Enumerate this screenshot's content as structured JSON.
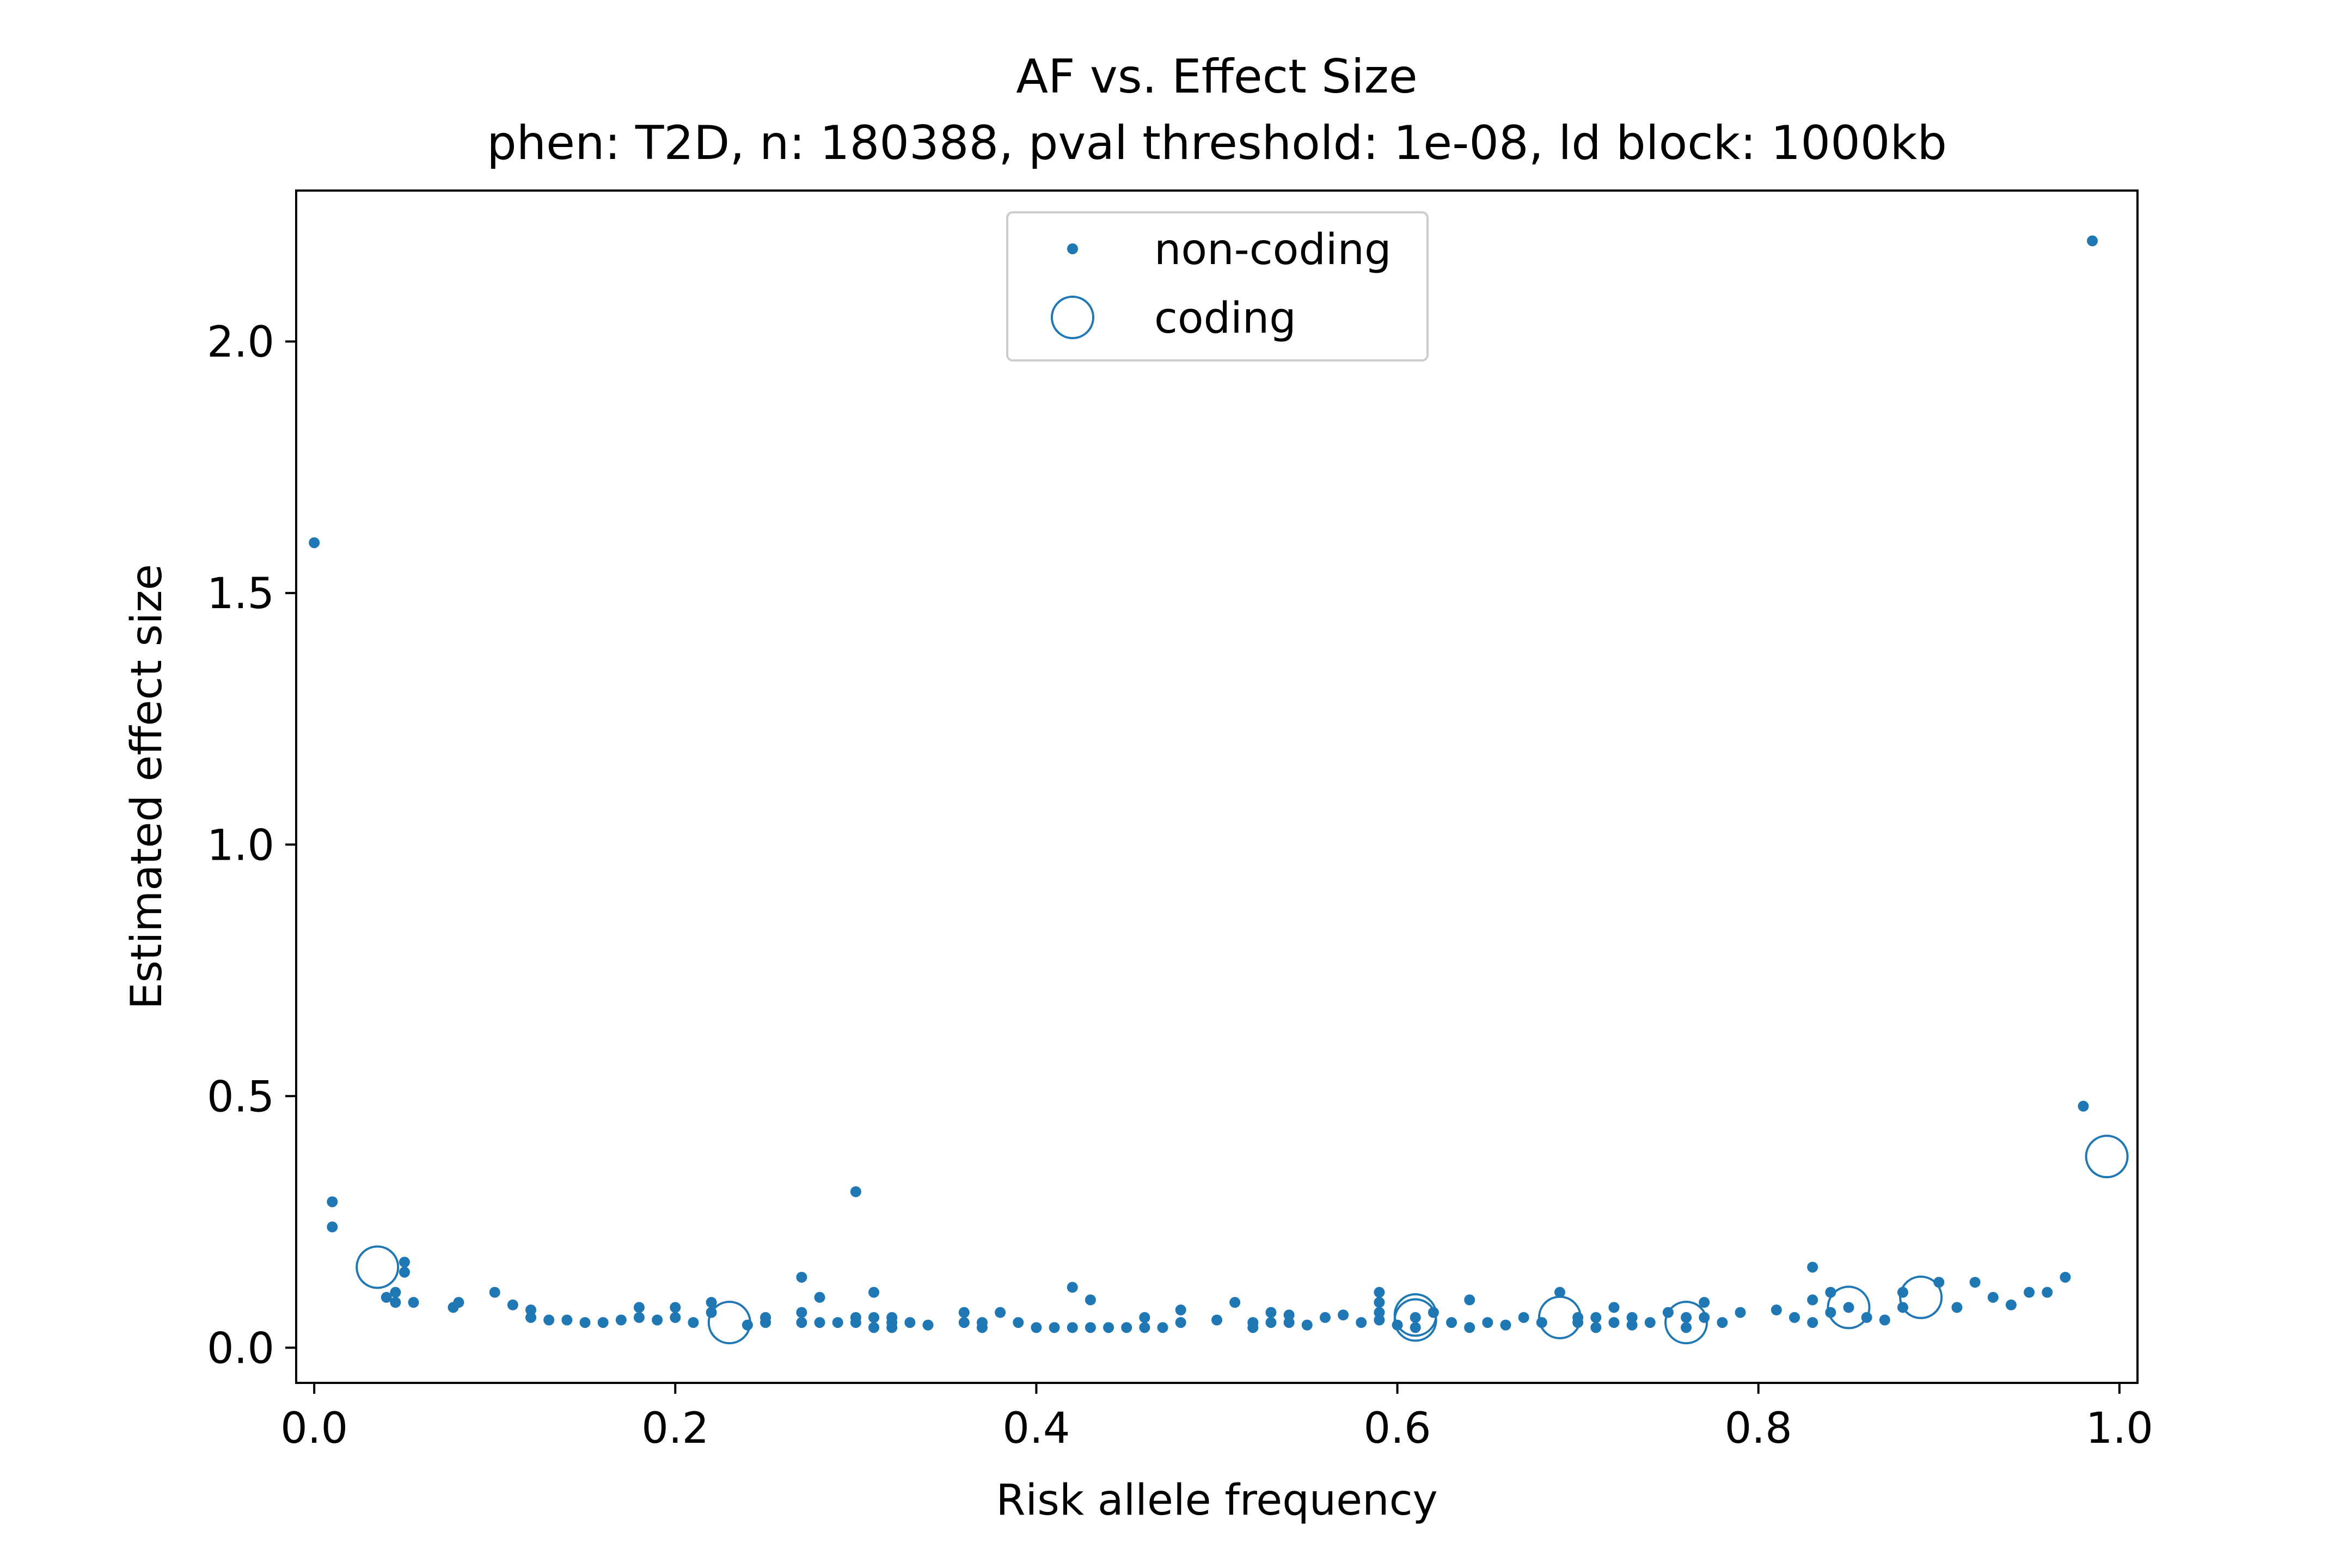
{
  "chart_data": {
    "type": "scatter",
    "title": "AF vs. Effect Size",
    "subtitle": "phen: T2D, n: 180388, pval threshold: 1e-08, ld block: 1000kb",
    "xlabel": "Risk allele frequency",
    "ylabel": "Estimated effect size",
    "xlim": [
      -0.01,
      1.01
    ],
    "ylim": [
      -0.07,
      2.3
    ],
    "xticks": [
      "0.0",
      "0.2",
      "0.4",
      "0.6",
      "0.8",
      "1.0"
    ],
    "yticks": [
      "0.0",
      "0.5",
      "1.0",
      "1.5",
      "2.0"
    ],
    "grid": false,
    "legend": {
      "position": "top-center",
      "entries": [
        "non-coding",
        "coding"
      ]
    },
    "color": "#1f77b4",
    "series": [
      {
        "name": "non-coding",
        "marker": "dot",
        "points": [
          [
            0.0,
            1.6
          ],
          [
            0.01,
            0.29
          ],
          [
            0.01,
            0.24
          ],
          [
            0.04,
            0.1
          ],
          [
            0.045,
            0.09
          ],
          [
            0.05,
            0.17
          ],
          [
            0.05,
            0.15
          ],
          [
            0.045,
            0.11
          ],
          [
            0.055,
            0.09
          ],
          [
            0.077,
            0.08
          ],
          [
            0.08,
            0.09
          ],
          [
            0.1,
            0.11
          ],
          [
            0.11,
            0.085
          ],
          [
            0.12,
            0.075
          ],
          [
            0.12,
            0.06
          ],
          [
            0.13,
            0.055
          ],
          [
            0.14,
            0.055
          ],
          [
            0.15,
            0.05
          ],
          [
            0.16,
            0.05
          ],
          [
            0.17,
            0.055
          ],
          [
            0.18,
            0.06
          ],
          [
            0.18,
            0.08
          ],
          [
            0.19,
            0.055
          ],
          [
            0.2,
            0.06
          ],
          [
            0.2,
            0.08
          ],
          [
            0.21,
            0.05
          ],
          [
            0.22,
            0.09
          ],
          [
            0.22,
            0.07
          ],
          [
            0.24,
            0.045
          ],
          [
            0.25,
            0.06
          ],
          [
            0.25,
            0.05
          ],
          [
            0.27,
            0.14
          ],
          [
            0.27,
            0.07
          ],
          [
            0.27,
            0.05
          ],
          [
            0.28,
            0.1
          ],
          [
            0.28,
            0.05
          ],
          [
            0.29,
            0.05
          ],
          [
            0.3,
            0.31
          ],
          [
            0.3,
            0.06
          ],
          [
            0.3,
            0.05
          ],
          [
            0.31,
            0.11
          ],
          [
            0.31,
            0.06
          ],
          [
            0.31,
            0.04
          ],
          [
            0.32,
            0.06
          ],
          [
            0.32,
            0.05
          ],
          [
            0.32,
            0.04
          ],
          [
            0.33,
            0.05
          ],
          [
            0.34,
            0.045
          ],
          [
            0.36,
            0.07
          ],
          [
            0.36,
            0.05
          ],
          [
            0.37,
            0.05
          ],
          [
            0.37,
            0.04
          ],
          [
            0.38,
            0.07
          ],
          [
            0.39,
            0.05
          ],
          [
            0.4,
            0.04
          ],
          [
            0.41,
            0.04
          ],
          [
            0.42,
            0.12
          ],
          [
            0.42,
            0.04
          ],
          [
            0.43,
            0.095
          ],
          [
            0.43,
            0.04
          ],
          [
            0.44,
            0.04
          ],
          [
            0.45,
            0.04
          ],
          [
            0.46,
            0.06
          ],
          [
            0.46,
            0.04
          ],
          [
            0.47,
            0.04
          ],
          [
            0.48,
            0.075
          ],
          [
            0.48,
            0.05
          ],
          [
            0.5,
            0.055
          ],
          [
            0.51,
            0.09
          ],
          [
            0.52,
            0.05
          ],
          [
            0.52,
            0.04
          ],
          [
            0.53,
            0.07
          ],
          [
            0.53,
            0.05
          ],
          [
            0.54,
            0.065
          ],
          [
            0.54,
            0.05
          ],
          [
            0.55,
            0.045
          ],
          [
            0.56,
            0.06
          ],
          [
            0.57,
            0.065
          ],
          [
            0.58,
            0.05
          ],
          [
            0.59,
            0.11
          ],
          [
            0.59,
            0.09
          ],
          [
            0.59,
            0.07
          ],
          [
            0.59,
            0.055
          ],
          [
            0.6,
            0.045
          ],
          [
            0.61,
            0.06
          ],
          [
            0.61,
            0.04
          ],
          [
            0.62,
            0.07
          ],
          [
            0.63,
            0.05
          ],
          [
            0.64,
            0.095
          ],
          [
            0.64,
            0.04
          ],
          [
            0.65,
            0.05
          ],
          [
            0.66,
            0.045
          ],
          [
            0.67,
            0.06
          ],
          [
            0.68,
            0.05
          ],
          [
            0.69,
            0.11
          ],
          [
            0.7,
            0.06
          ],
          [
            0.7,
            0.05
          ],
          [
            0.71,
            0.06
          ],
          [
            0.71,
            0.04
          ],
          [
            0.72,
            0.08
          ],
          [
            0.72,
            0.05
          ],
          [
            0.73,
            0.06
          ],
          [
            0.73,
            0.045
          ],
          [
            0.74,
            0.05
          ],
          [
            0.75,
            0.07
          ],
          [
            0.76,
            0.06
          ],
          [
            0.76,
            0.04
          ],
          [
            0.77,
            0.09
          ],
          [
            0.77,
            0.06
          ],
          [
            0.78,
            0.05
          ],
          [
            0.79,
            0.07
          ],
          [
            0.81,
            0.075
          ],
          [
            0.82,
            0.06
          ],
          [
            0.83,
            0.16
          ],
          [
            0.83,
            0.095
          ],
          [
            0.83,
            0.05
          ],
          [
            0.84,
            0.11
          ],
          [
            0.84,
            0.07
          ],
          [
            0.85,
            0.08
          ],
          [
            0.86,
            0.06
          ],
          [
            0.87,
            0.055
          ],
          [
            0.88,
            0.11
          ],
          [
            0.88,
            0.08
          ],
          [
            0.9,
            0.13
          ],
          [
            0.91,
            0.08
          ],
          [
            0.92,
            0.13
          ],
          [
            0.93,
            0.1
          ],
          [
            0.94,
            0.085
          ],
          [
            0.95,
            0.11
          ],
          [
            0.96,
            0.11
          ],
          [
            0.97,
            0.14
          ],
          [
            0.98,
            0.48
          ],
          [
            0.985,
            2.2
          ]
        ]
      },
      {
        "name": "coding",
        "marker": "circle",
        "points": [
          [
            0.035,
            0.16
          ],
          [
            0.23,
            0.05
          ],
          [
            0.61,
            0.065
          ],
          [
            0.61,
            0.055
          ],
          [
            0.69,
            0.06
          ],
          [
            0.76,
            0.05
          ],
          [
            0.85,
            0.08
          ],
          [
            0.89,
            0.1
          ],
          [
            0.993,
            0.38
          ]
        ]
      }
    ]
  }
}
